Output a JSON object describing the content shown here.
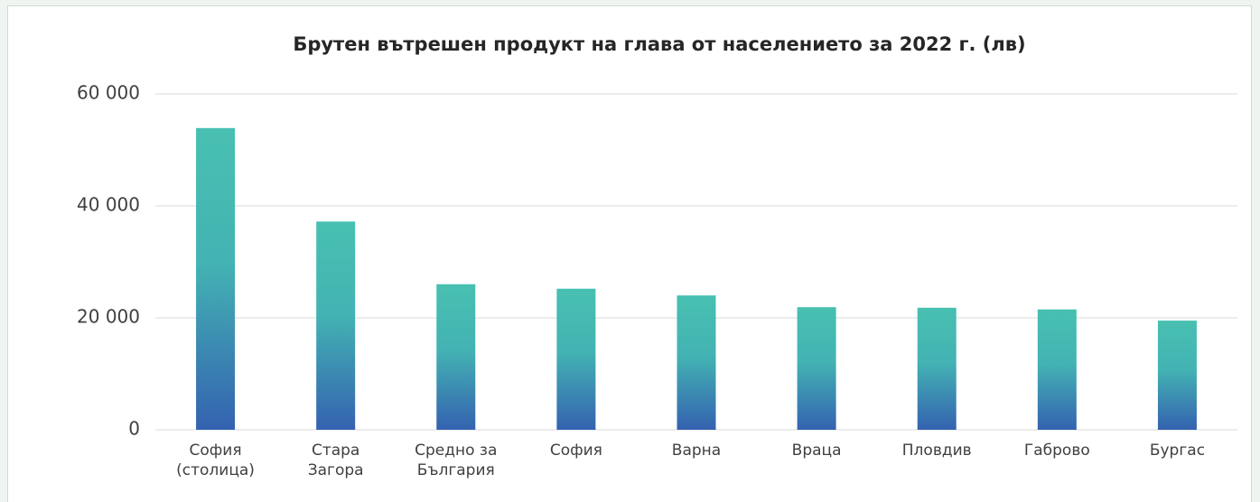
{
  "chart_data": {
    "type": "bar",
    "title": "Брутен вътрешен продукт на глава от населението за 2022 г. (лв)",
    "categories": [
      "София (столица)",
      "Стара Загора",
      "Средно за България",
      "София",
      "Варна",
      "Враца",
      "Пловдив",
      "Габрово",
      "Бургас"
    ],
    "values": [
      53900,
      37200,
      26000,
      25200,
      24000,
      21900,
      21800,
      21500,
      19500
    ],
    "color": "#44b8b2",
    "ylim": [
      0,
      60000
    ],
    "yticks": [
      0,
      {
        "value": 20000,
        "label": "20 000"
      },
      {
        "value": 40000,
        "label": "40 000"
      },
      {
        "value": 60000,
        "label": "60 000"
      }
    ],
    "grid": true
  }
}
